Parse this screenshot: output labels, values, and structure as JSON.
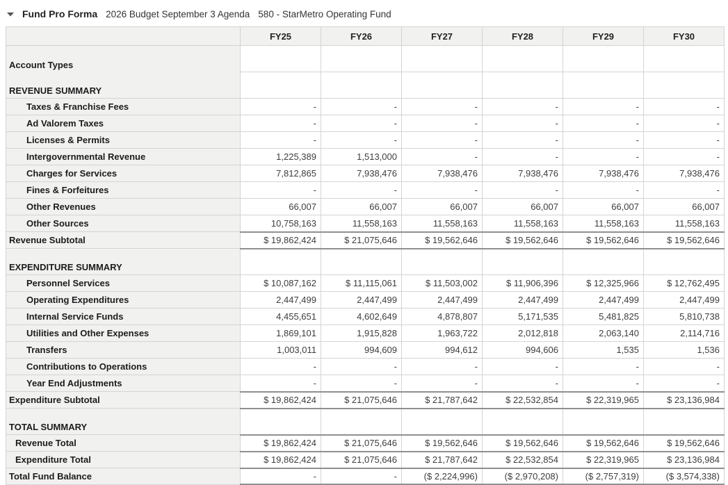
{
  "header": {
    "collapse_icon": "triangle-down",
    "title": "Fund Pro Forma",
    "budget_label": "2026 Budget September 3 Agenda",
    "fund_label": "580 - StarMetro Operating Fund"
  },
  "colors": {
    "label_background": "#f1f1f0",
    "grid_border": "#d4d4d4",
    "heavy_border": "#8f8f8f",
    "label_text": "#1c1c1c",
    "value_text": "#3d3d3d"
  },
  "table": {
    "columns": [
      "FY25",
      "FY26",
      "FY27",
      "FY28",
      "FY29",
      "FY30"
    ],
    "rows": [
      {
        "label": "Account Types",
        "type": "section",
        "indent": 0,
        "merge_below": true,
        "values": [
          "",
          "",
          "",
          "",
          "",
          ""
        ]
      },
      {
        "label": "REVENUE SUMMARY",
        "type": "section",
        "indent": 0,
        "values": [
          "",
          "",
          "",
          "",
          "",
          ""
        ]
      },
      {
        "label": "Taxes & Franchise Fees",
        "type": "data",
        "indent": 2,
        "values": [
          "-",
          "-",
          "-",
          "-",
          "-",
          "-"
        ]
      },
      {
        "label": "Ad Valorem Taxes",
        "type": "data",
        "indent": 2,
        "values": [
          "-",
          "-",
          "-",
          "-",
          "-",
          "-"
        ]
      },
      {
        "label": "Licenses & Permits",
        "type": "data",
        "indent": 2,
        "values": [
          "-",
          "-",
          "-",
          "-",
          "-",
          "-"
        ]
      },
      {
        "label": "Intergovernmental Revenue",
        "type": "data",
        "indent": 2,
        "values": [
          "1,225,389",
          "1,513,000",
          "-",
          "-",
          "-",
          "-"
        ]
      },
      {
        "label": "Charges for Services",
        "type": "data",
        "indent": 2,
        "values": [
          "7,812,865",
          "7,938,476",
          "7,938,476",
          "7,938,476",
          "7,938,476",
          "7,938,476"
        ]
      },
      {
        "label": "Fines & Forfeitures",
        "type": "data",
        "indent": 2,
        "values": [
          "-",
          "-",
          "-",
          "-",
          "-",
          "-"
        ]
      },
      {
        "label": "Other Revenues",
        "type": "data",
        "indent": 2,
        "values": [
          "66,007",
          "66,007",
          "66,007",
          "66,007",
          "66,007",
          "66,007"
        ]
      },
      {
        "label": "Other Sources",
        "type": "data",
        "indent": 2,
        "values": [
          "10,758,163",
          "11,558,163",
          "11,558,163",
          "11,558,163",
          "11,558,163",
          "11,558,163"
        ]
      },
      {
        "label": "Revenue Subtotal",
        "type": "subtotal",
        "indent": 0,
        "values": [
          "$ 19,862,424",
          "$ 21,075,646",
          "$ 19,562,646",
          "$ 19,562,646",
          "$ 19,562,646",
          "$ 19,562,646"
        ]
      },
      {
        "label": "EXPENDITURE SUMMARY",
        "type": "section",
        "indent": 0,
        "values": [
          "",
          "",
          "",
          "",
          "",
          ""
        ]
      },
      {
        "label": "Personnel Services",
        "type": "data",
        "indent": 2,
        "values": [
          "$ 10,087,162",
          "$ 11,115,061",
          "$ 11,503,002",
          "$ 11,906,396",
          "$ 12,325,966",
          "$ 12,762,495"
        ]
      },
      {
        "label": "Operating Expenditures",
        "type": "data",
        "indent": 2,
        "values": [
          "2,447,499",
          "2,447,499",
          "2,447,499",
          "2,447,499",
          "2,447,499",
          "2,447,499"
        ]
      },
      {
        "label": "Internal Service Funds",
        "type": "data",
        "indent": 2,
        "values": [
          "4,455,651",
          "4,602,649",
          "4,878,807",
          "5,171,535",
          "5,481,825",
          "5,810,738"
        ]
      },
      {
        "label": "Utilities and Other Expenses",
        "type": "data",
        "indent": 2,
        "values": [
          "1,869,101",
          "1,915,828",
          "1,963,722",
          "2,012,818",
          "2,063,140",
          "2,114,716"
        ]
      },
      {
        "label": "Transfers",
        "type": "data",
        "indent": 2,
        "values": [
          "1,003,011",
          "994,609",
          "994,612",
          "994,606",
          "1,535",
          "1,536"
        ]
      },
      {
        "label": "Contributions to Operations",
        "type": "data",
        "indent": 2,
        "values": [
          "-",
          "-",
          "-",
          "-",
          "-",
          "-"
        ]
      },
      {
        "label": "Year End Adjustments",
        "type": "data",
        "indent": 2,
        "values": [
          "-",
          "-",
          "-",
          "-",
          "-",
          "-"
        ]
      },
      {
        "label": "Expenditure Subtotal",
        "type": "subtotal",
        "indent": 0,
        "values": [
          "$ 19,862,424",
          "$ 21,075,646",
          "$ 21,787,642",
          "$ 22,532,854",
          "$ 22,319,965",
          "$ 23,136,984"
        ]
      },
      {
        "label": "TOTAL SUMMARY",
        "type": "section",
        "indent": 0,
        "values": [
          "",
          "",
          "",
          "",
          "",
          ""
        ]
      },
      {
        "label": "Revenue Total",
        "type": "total",
        "indent": 1,
        "values": [
          "$ 19,862,424",
          "$ 21,075,646",
          "$ 19,562,646",
          "$ 19,562,646",
          "$ 19,562,646",
          "$ 19,562,646"
        ]
      },
      {
        "label": "Expenditure Total",
        "type": "total",
        "indent": 1,
        "values": [
          "$ 19,862,424",
          "$ 21,075,646",
          "$ 21,787,642",
          "$ 22,532,854",
          "$ 22,319,965",
          "$ 23,136,984"
        ]
      },
      {
        "label": "Total Fund Balance",
        "type": "grand",
        "indent": 0,
        "values": [
          "-",
          "-",
          "($ 2,224,996)",
          "($ 2,970,208)",
          "($ 2,757,319)",
          "($ 3,574,338)"
        ]
      }
    ]
  }
}
